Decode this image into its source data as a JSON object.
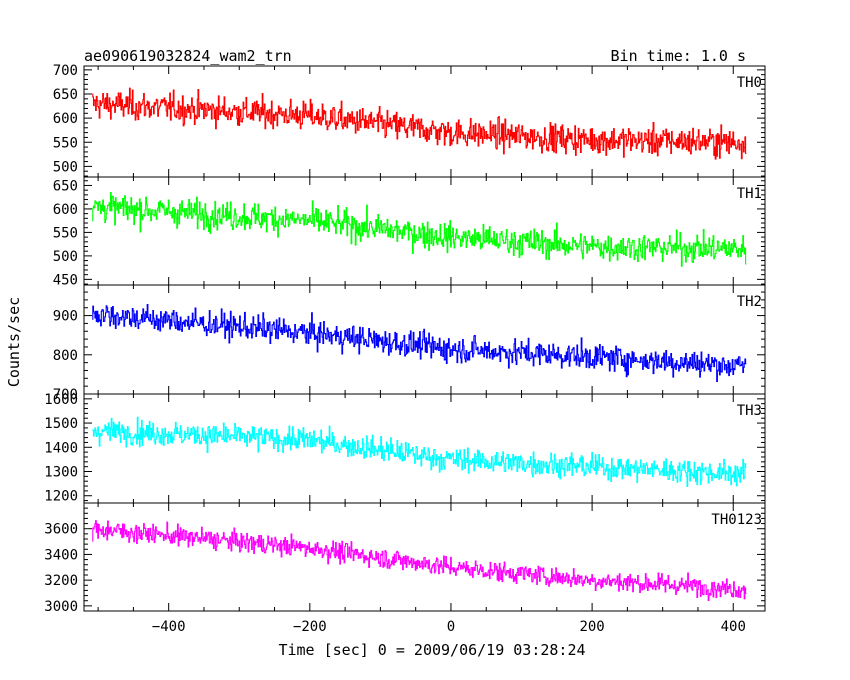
{
  "chart_data": {
    "type": "line",
    "title": "ae090619032824_wam2_trn",
    "bin_time": "Bin time: 1.0 s",
    "xlabel": "Time [sec] 0 = 2009/06/19 03:28:24",
    "ylabel": "Counts/sec",
    "xlim": [
      -520,
      445
    ],
    "x_ticks": [
      -400,
      -200,
      0,
      200,
      400
    ],
    "x_tick_labels": [
      "−400",
      "−200",
      "0",
      "200",
      "400"
    ],
    "x_range_data": [
      -508,
      418
    ],
    "grid": false,
    "panels": [
      {
        "name": "TH0",
        "color": "#ff0000",
        "ylim": [
          478,
          708
        ],
        "y_ticks": [
          500,
          550,
          600,
          650,
          700
        ],
        "trend": [
          {
            "x": -508,
            "y": 630
          },
          {
            "x": -200,
            "y": 605
          },
          {
            "x": 0,
            "y": 570
          },
          {
            "x": 200,
            "y": 555
          },
          {
            "x": 418,
            "y": 550
          }
        ],
        "noise": 27,
        "series": [
          {
            "name": "TH0",
            "values": []
          }
        ]
      },
      {
        "name": "TH1",
        "color": "#00ff00",
        "ylim": [
          438,
          668
        ],
        "y_ticks": [
          450,
          500,
          550,
          600,
          650
        ],
        "trend": [
          {
            "x": -508,
            "y": 605
          },
          {
            "x": -200,
            "y": 575
          },
          {
            "x": 0,
            "y": 540
          },
          {
            "x": 200,
            "y": 520
          },
          {
            "x": 418,
            "y": 515
          }
        ],
        "noise": 27,
        "series": [
          {
            "name": "TH1",
            "values": []
          }
        ]
      },
      {
        "name": "TH2",
        "color": "#0000ff",
        "ylim": [
          700,
          978
        ],
        "y_ticks": [
          700,
          800,
          900
        ],
        "trend": [
          {
            "x": -508,
            "y": 905
          },
          {
            "x": -200,
            "y": 855
          },
          {
            "x": 0,
            "y": 815
          },
          {
            "x": 200,
            "y": 795
          },
          {
            "x": 418,
            "y": 770
          }
        ],
        "noise": 30,
        "series": [
          {
            "name": "TH2",
            "values": []
          }
        ]
      },
      {
        "name": "TH3",
        "color": "#00ffff",
        "ylim": [
          1170,
          1620
        ],
        "y_ticks": [
          1200,
          1300,
          1400,
          1500,
          1600
        ],
        "trend": [
          {
            "x": -508,
            "y": 1470
          },
          {
            "x": -200,
            "y": 1430
          },
          {
            "x": 0,
            "y": 1350
          },
          {
            "x": 200,
            "y": 1320
          },
          {
            "x": 418,
            "y": 1290
          }
        ],
        "noise": 45,
        "series": [
          {
            "name": "TH3",
            "values": []
          }
        ]
      },
      {
        "name": "TH0123",
        "color": "#ff00ff",
        "ylim": [
          2960,
          3800
        ],
        "y_ticks": [
          3000,
          3200,
          3400,
          3600
        ],
        "trend": [
          {
            "x": -508,
            "y": 3600
          },
          {
            "x": -200,
            "y": 3450
          },
          {
            "x": 0,
            "y": 3300
          },
          {
            "x": 200,
            "y": 3200
          },
          {
            "x": 418,
            "y": 3130
          }
        ],
        "noise": 70,
        "series": [
          {
            "name": "TH0123",
            "values": []
          }
        ]
      }
    ]
  }
}
